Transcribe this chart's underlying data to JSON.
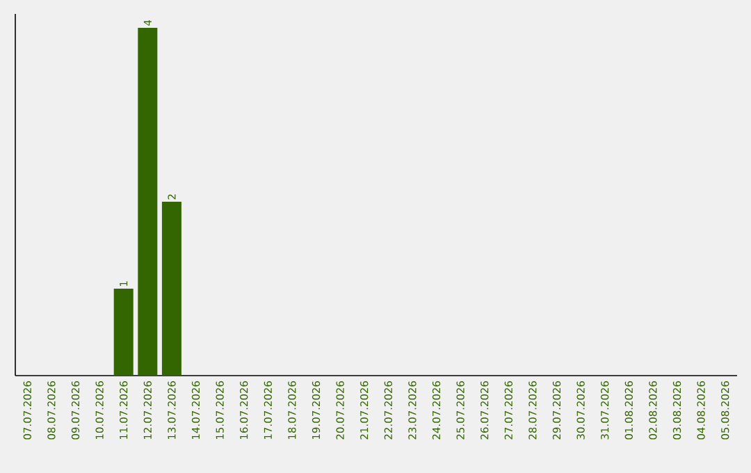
{
  "chart_data": {
    "type": "bar",
    "categories": [
      "07.07.2026",
      "08.07.2026",
      "09.07.2026",
      "10.07.2026",
      "11.07.2026",
      "12.07.2026",
      "13.07.2026",
      "14.07.2026",
      "15.07.2026",
      "16.07.2026",
      "17.07.2026",
      "18.07.2026",
      "19.07.2026",
      "20.07.2026",
      "21.07.2026",
      "22.07.2026",
      "23.07.2026",
      "24.07.2026",
      "25.07.2026",
      "26.07.2026",
      "27.07.2026",
      "28.07.2026",
      "29.07.2026",
      "30.07.2026",
      "31.07.2026",
      "01.08.2026",
      "02.08.2026",
      "03.08.2026",
      "04.08.2026",
      "05.08.2026"
    ],
    "values": [
      0,
      0,
      0,
      0,
      1,
      4,
      2,
      0,
      0,
      0,
      0,
      0,
      0,
      0,
      0,
      0,
      0,
      0,
      0,
      0,
      0,
      0,
      0,
      0,
      0,
      0,
      0,
      0,
      0,
      0
    ],
    "value_labels": [
      null,
      null,
      null,
      null,
      "1",
      "4",
      "2",
      null,
      null,
      null,
      null,
      null,
      null,
      null,
      null,
      null,
      null,
      null,
      null,
      null,
      null,
      null,
      null,
      null,
      null,
      null,
      null,
      null,
      null,
      null
    ],
    "color": "#336600"
  }
}
